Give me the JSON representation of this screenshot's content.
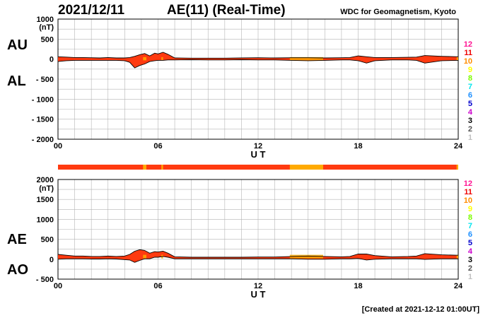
{
  "header": {
    "date": "2021/12/11",
    "title": "AE(11) (Real-Time)",
    "source": "WDC for Geomagnetism, Kyoto",
    "created": "[Created at 2021-12-12 01:00UT]"
  },
  "colors": {
    "fill": "#ff3a10",
    "highlight": "#ffaa00",
    "grid": "#b4b4b4"
  },
  "station_count_legend": [
    {
      "label": "12",
      "color": "#ff1493"
    },
    {
      "label": "11",
      "color": "#ee0000"
    },
    {
      "label": "10",
      "color": "#ff8c00"
    },
    {
      "label": "9",
      "color": "#ffff00"
    },
    {
      "label": "8",
      "color": "#7cfc00"
    },
    {
      "label": "7",
      "color": "#00e5ee"
    },
    {
      "label": "6",
      "color": "#1e90ff"
    },
    {
      "label": "5",
      "color": "#0000cd"
    },
    {
      "label": "4",
      "color": "#cc00cc"
    },
    {
      "label": "3",
      "color": "#000000"
    },
    {
      "label": "2",
      "color": "#555555"
    },
    {
      "label": "1",
      "color": "#c0c0c0"
    }
  ],
  "chart_data": [
    {
      "type": "area",
      "panel": "AU/AL",
      "unit_label": "(nT)",
      "series_labels": [
        "AU",
        "AL"
      ],
      "xlabel": "U T",
      "xlim": [
        0,
        24
      ],
      "xticks": [
        "00",
        "06",
        "12",
        "18",
        "24"
      ],
      "ylim": [
        -2000,
        1000
      ],
      "yticks": [
        {
          "v": 1000,
          "label": "1000"
        },
        {
          "v": 500,
          "label": "500"
        },
        {
          "v": 0,
          "label": "0"
        },
        {
          "v": -500,
          "label": "- 500"
        },
        {
          "v": -1000,
          "label": "- 1000"
        },
        {
          "v": -1500,
          "label": "- 1500"
        },
        {
          "v": -2000,
          "label": "- 2000"
        }
      ],
      "grid": true,
      "x": [
        0,
        0.5,
        1,
        1.5,
        2,
        2.5,
        3,
        3.5,
        4,
        4.3,
        4.6,
        4.9,
        5.2,
        5.5,
        5.8,
        6.0,
        6.3,
        6.6,
        7,
        8,
        9,
        10,
        11,
        12,
        13,
        14,
        15,
        16,
        17,
        17.5,
        18,
        18.5,
        19,
        20,
        21,
        21.5,
        22,
        23,
        24
      ],
      "upper": [
        60,
        50,
        40,
        40,
        35,
        30,
        40,
        30,
        30,
        40,
        70,
        110,
        140,
        80,
        150,
        130,
        170,
        120,
        30,
        25,
        25,
        25,
        30,
        35,
        30,
        35,
        35,
        30,
        35,
        40,
        80,
        60,
        40,
        40,
        45,
        50,
        90,
        70,
        60
      ],
      "lower": [
        -60,
        -40,
        -30,
        -30,
        -30,
        -30,
        -30,
        -30,
        -40,
        -80,
        -220,
        -160,
        -120,
        -60,
        -40,
        -30,
        -30,
        -20,
        -20,
        -15,
        -20,
        -20,
        -15,
        -20,
        -20,
        -30,
        -40,
        -30,
        -20,
        -20,
        -40,
        -100,
        -40,
        -20,
        -20,
        -30,
        -100,
        -40,
        -30
      ]
    },
    {
      "type": "area",
      "panel": "AE/AO",
      "unit_label": "(nT)",
      "series_labels": [
        "AE",
        "AO"
      ],
      "xlabel": "U T",
      "xlim": [
        0,
        24
      ],
      "xticks": [
        "00",
        "06",
        "12",
        "18",
        "24"
      ],
      "ylim": [
        -500,
        2000
      ],
      "yticks": [
        {
          "v": 2000,
          "label": "2000"
        },
        {
          "v": 1500,
          "label": "1500"
        },
        {
          "v": 1000,
          "label": "1000"
        },
        {
          "v": 500,
          "label": "500"
        },
        {
          "v": 0,
          "label": "0"
        },
        {
          "v": -500,
          "label": "- 500"
        }
      ],
      "grid": true,
      "x": [
        0,
        0.5,
        1,
        1.5,
        2,
        2.5,
        3,
        3.5,
        4,
        4.3,
        4.6,
        4.9,
        5.2,
        5.5,
        5.8,
        6.0,
        6.3,
        6.6,
        7,
        8,
        9,
        10,
        11,
        12,
        13,
        14,
        15,
        16,
        17,
        17.5,
        18,
        18.5,
        19,
        20,
        21,
        21.5,
        22,
        23,
        24
      ],
      "upper": [
        120,
        100,
        80,
        80,
        70,
        70,
        80,
        70,
        80,
        120,
        200,
        240,
        220,
        150,
        190,
        180,
        200,
        150,
        60,
        50,
        50,
        50,
        50,
        55,
        55,
        70,
        80,
        70,
        60,
        70,
        130,
        130,
        90,
        60,
        70,
        80,
        140,
        110,
        100
      ],
      "lower": [
        0,
        10,
        10,
        10,
        5,
        5,
        10,
        5,
        -10,
        -20,
        -80,
        -30,
        10,
        10,
        50,
        50,
        70,
        50,
        10,
        10,
        10,
        10,
        10,
        10,
        10,
        10,
        0,
        0,
        10,
        10,
        20,
        -20,
        0,
        10,
        10,
        10,
        -5,
        10,
        10
      ]
    }
  ],
  "highlight_bands": [
    [
      5.1,
      5.3
    ],
    [
      6.2,
      6.3
    ],
    [
      13.9,
      15.9
    ],
    [
      23.9,
      24
    ]
  ]
}
